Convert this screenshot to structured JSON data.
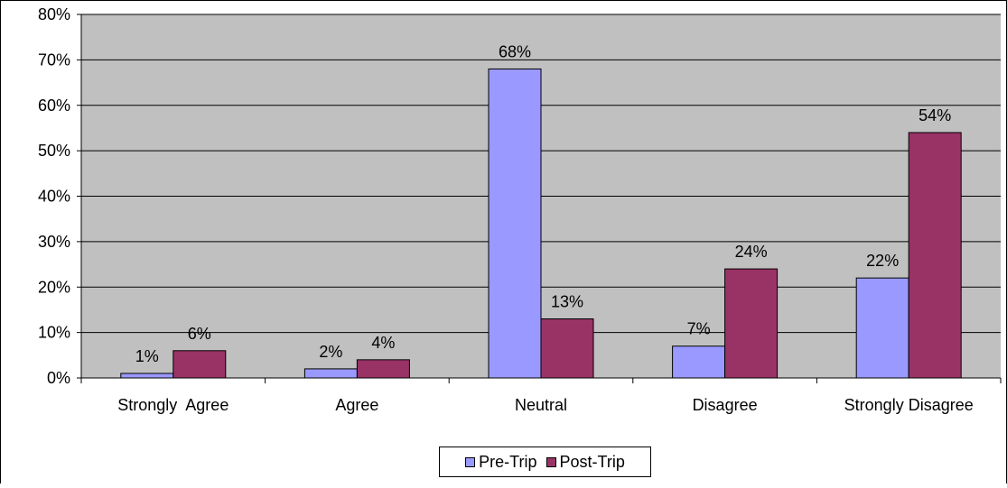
{
  "chart_data": {
    "type": "bar",
    "categories": [
      "Strongly  Agree",
      "Agree",
      "Neutral",
      "Disagree",
      "Strongly Disagree"
    ],
    "series": [
      {
        "name": "Pre-Trip",
        "values": [
          1,
          2,
          68,
          7,
          22
        ],
        "labels": [
          "1%",
          "2%",
          "68%",
          "7%",
          "22%"
        ],
        "color": "#9999FF"
      },
      {
        "name": "Post-Trip",
        "values": [
          6,
          4,
          13,
          24,
          54
        ],
        "labels": [
          "6%",
          "4%",
          "13%",
          "24%",
          "54%"
        ],
        "color": "#993366"
      }
    ],
    "ylim": [
      0,
      80
    ],
    "yticks": [
      "0%",
      "10%",
      "20%",
      "30%",
      "40%",
      "50%",
      "60%",
      "70%",
      "80%"
    ],
    "grid": true,
    "legend_position": "bottom",
    "plot_background": "#C0C0C0"
  }
}
